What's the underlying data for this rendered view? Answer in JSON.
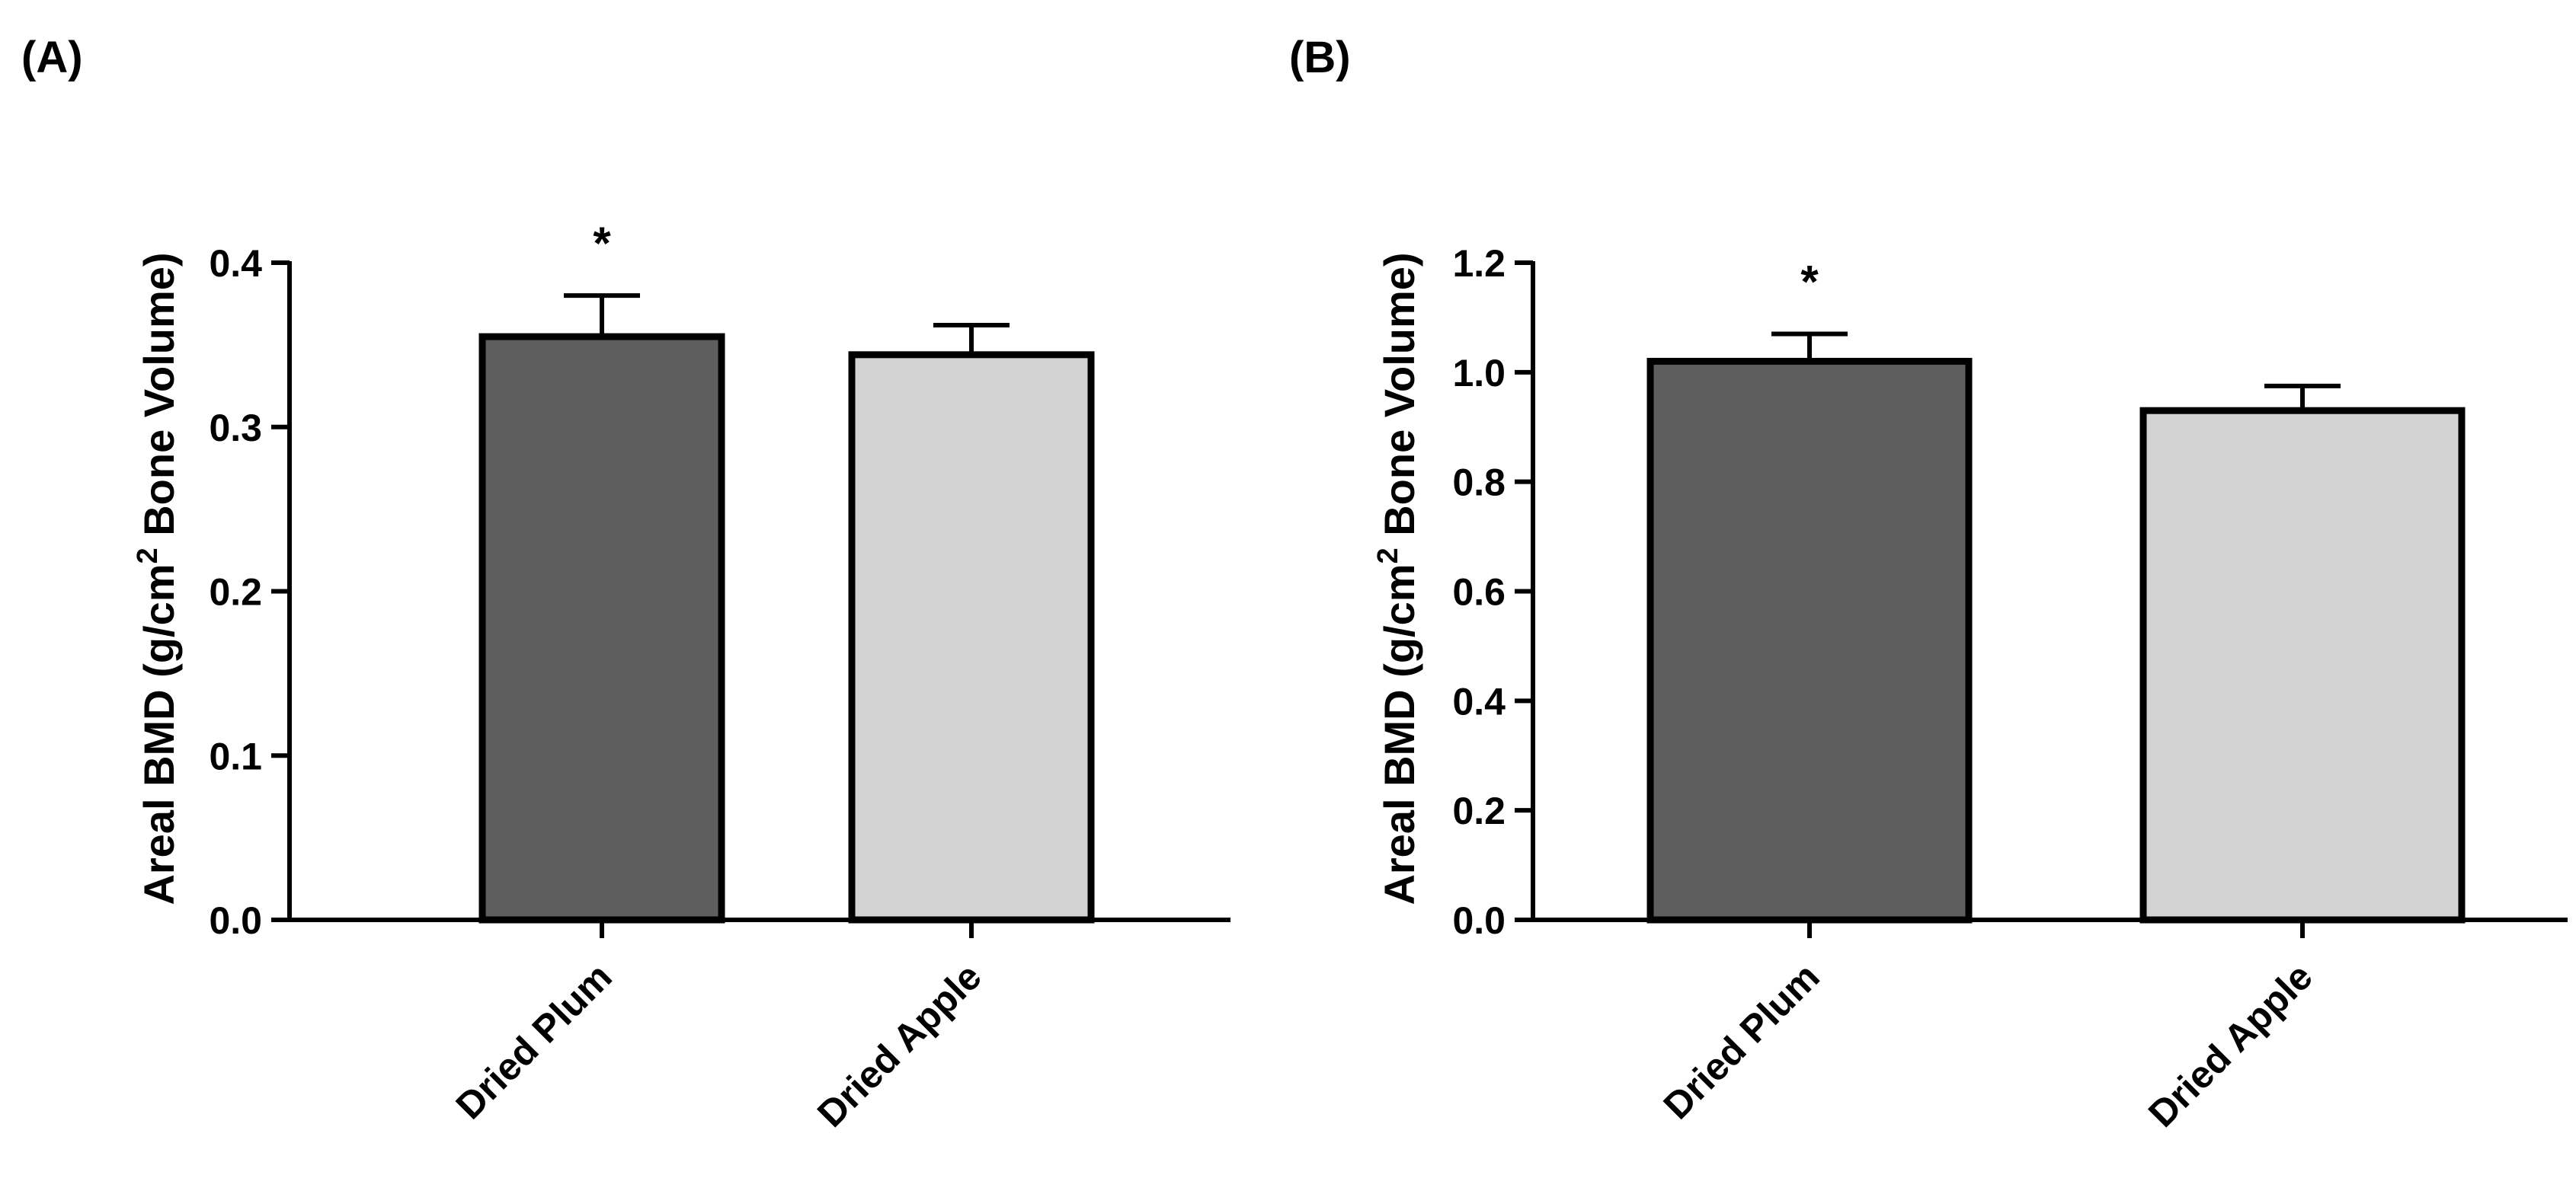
{
  "colors": {
    "axis": "#000000",
    "dark_bar": "#5e5e5e",
    "light_bar": "#d3d3d3"
  },
  "chart_data": [
    {
      "panel_label": "(A)",
      "type": "bar",
      "categories": [
        "Dried Plum",
        "Dried Apple"
      ],
      "values": [
        0.355,
        0.344
      ],
      "errors": [
        0.025,
        0.018
      ],
      "bar_colors": [
        "#5e5e5e",
        "#d3d3d3"
      ],
      "annotations": [
        "*",
        ""
      ],
      "ylabel": {
        "main": "Areal BMD (g/cm",
        "sup": "2",
        "tail": " Bone Volume)"
      },
      "ylim": [
        0,
        0.4
      ],
      "yticks": [
        0.0,
        0.1,
        0.2,
        0.3,
        0.4
      ],
      "ytick_labels": [
        "0.0",
        "0.1",
        "0.2",
        "0.3",
        "0.4"
      ],
      "grid": false
    },
    {
      "panel_label": "(B)",
      "type": "bar",
      "categories": [
        "Dried Plum",
        "Dried Apple"
      ],
      "values": [
        1.02,
        0.93
      ],
      "errors": [
        0.05,
        0.045
      ],
      "bar_colors": [
        "#5e5e5e",
        "#d3d3d3"
      ],
      "annotations": [
        "*",
        ""
      ],
      "ylabel": {
        "main": "Areal BMD (g/cm",
        "sup": "2",
        "tail": " Bone Volume)"
      },
      "ylim": [
        0,
        1.2
      ],
      "yticks": [
        0.0,
        0.2,
        0.4,
        0.6,
        0.8,
        1.0,
        1.2
      ],
      "ytick_labels": [
        "0.0",
        "0.2",
        "0.4",
        "0.6",
        "0.8",
        "1.0",
        "1.2"
      ],
      "grid": false
    }
  ]
}
